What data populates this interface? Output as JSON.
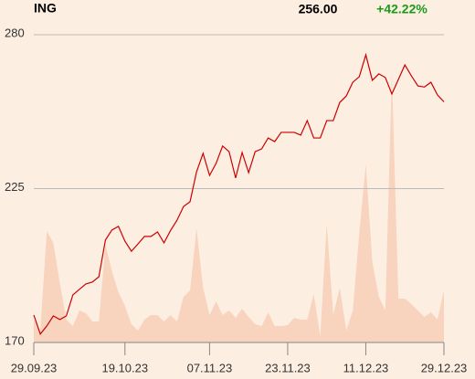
{
  "chart_data": {
    "type": "line",
    "title": "ING",
    "last": "256.00",
    "change": "+42.22%",
    "change_color": "#1a9c1a",
    "categories": [
      "29.09.23",
      null,
      null,
      null,
      null,
      null,
      null,
      null,
      null,
      null,
      null,
      null,
      null,
      null,
      "19.10.23",
      null,
      null,
      null,
      null,
      null,
      null,
      null,
      null,
      null,
      null,
      null,
      null,
      "07.11.23",
      null,
      null,
      null,
      null,
      null,
      null,
      null,
      null,
      null,
      null,
      null,
      "23.11.23",
      null,
      null,
      null,
      null,
      null,
      null,
      null,
      null,
      null,
      null,
      null,
      "11.12.23",
      null,
      null,
      null,
      null,
      null,
      null,
      null,
      null,
      null,
      null,
      null,
      "29.12.23"
    ],
    "series": [
      {
        "color": "#cc0000",
        "values": [
          179.8,
          173.0,
          175.9,
          179.5,
          178.2,
          179.5,
          187.0,
          189.0,
          190.9,
          191.6,
          193.5,
          206.6,
          210.2,
          211.5,
          206.2,
          202.6,
          205.2,
          207.9,
          207.9,
          209.5,
          205.6,
          210.0,
          213.7,
          218.6,
          220.3,
          231.0,
          237.6,
          229.7,
          234.0,
          240.2,
          238.2,
          228.8,
          237.9,
          230.7,
          238.2,
          239.2,
          243.1,
          241.8,
          245.1,
          245.1,
          245.1,
          244.1,
          249.3,
          243.1,
          243.1,
          249.3,
          249.3,
          255.8,
          258.1,
          263.0,
          265.0,
          272.8,
          263.7,
          266.0,
          264.7,
          258.8,
          264.0,
          269.2,
          265.3,
          261.7,
          261.3,
          263.0,
          258.5,
          256
        ]
      },
      {
        "color": "#f8d3bd",
        "kind": "volume",
        "values": [
          25,
          13,
          122,
          109,
          65,
          25,
          18,
          35,
          32,
          23,
          23,
          107,
          78,
          55,
          40,
          20,
          13,
          25,
          30,
          30,
          23,
          30,
          23,
          50,
          57,
          125,
          60,
          30,
          45,
          30,
          35,
          27,
          37,
          28,
          20,
          18,
          33,
          18,
          18,
          19,
          27,
          25,
          25,
          53,
          7,
          130,
          30,
          60,
          13,
          35,
          120,
          195,
          88,
          50,
          35,
          295,
          48,
          48,
          42,
          35,
          28,
          33,
          25,
          57
        ]
      }
    ],
    "ylim": [
      170,
      280
    ],
    "yticks": [
      170,
      225,
      280
    ],
    "grid": true
  }
}
